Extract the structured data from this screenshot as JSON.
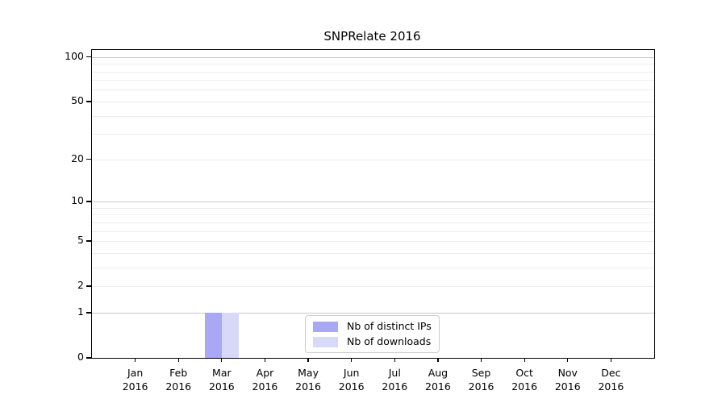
{
  "chart_data": {
    "type": "bar",
    "title": "SNPRelate 2016",
    "categories": [
      "Jan",
      "Feb",
      "Mar",
      "Apr",
      "May",
      "Jun",
      "Jul",
      "Aug",
      "Sep",
      "Oct",
      "Nov",
      "Dec"
    ],
    "x_year_label": "2016",
    "series": [
      {
        "name": "Nb of distinct IPs",
        "color": "#a8a8f5",
        "values": [
          0,
          0,
          1,
          0,
          0,
          0,
          0,
          0,
          0,
          0,
          0,
          0
        ]
      },
      {
        "name": "Nb of downloads",
        "color": "#d8d8f8",
        "values": [
          0,
          0,
          1,
          0,
          0,
          0,
          0,
          0,
          0,
          0,
          0,
          0
        ]
      }
    ],
    "xlabel": "",
    "ylabel": "",
    "yscale": "log1p",
    "ylim": [
      0,
      111.4
    ],
    "ytick_values": [
      0,
      1,
      2,
      5,
      10,
      20,
      50,
      100
    ],
    "grid": true,
    "grid_major_values": [
      1,
      10,
      100
    ],
    "grid_minor_values": [
      2,
      3,
      4,
      5,
      6,
      7,
      8,
      9,
      20,
      30,
      40,
      50,
      60,
      70,
      80,
      90
    ],
    "legend": {
      "entries": [
        "Nb of distinct IPs",
        "Nb of downloads"
      ],
      "position": "lower center"
    }
  },
  "colors": {
    "grid_major": "#c8c8c8",
    "grid_minor": "#ededed",
    "frame": "#000000",
    "text": "#000000",
    "legend_border": "#cccccc",
    "background": "#ffffff"
  }
}
